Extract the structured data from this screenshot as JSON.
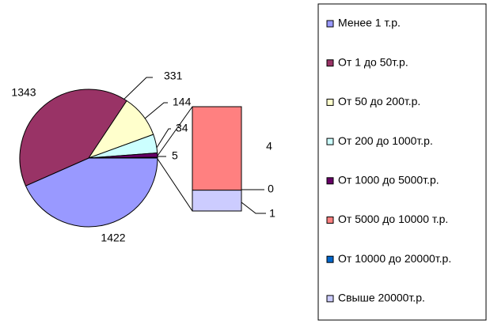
{
  "chart_data": {
    "type": "pie-of-bar",
    "categories": [
      "Менее 1 т.р.",
      "От 1 до 50т.р.",
      "От 50 до 200т.р.",
      "От 200 до 1000т.р.",
      "От 1000 до 5000т.р.",
      "От 5000 до 10000 т.р.",
      "От 10000 до 20000т.р.",
      "Свыше 20000т.р."
    ],
    "values": [
      1422,
      1343,
      331,
      144,
      34,
      4,
      0,
      1
    ],
    "colors": [
      "#9999ff",
      "#993366",
      "#ffffcc",
      "#ccffff",
      "#660066",
      "#ff8080",
      "#0066cc",
      "#ccccff"
    ],
    "pie_count": 5,
    "other_value": 5
  }
}
